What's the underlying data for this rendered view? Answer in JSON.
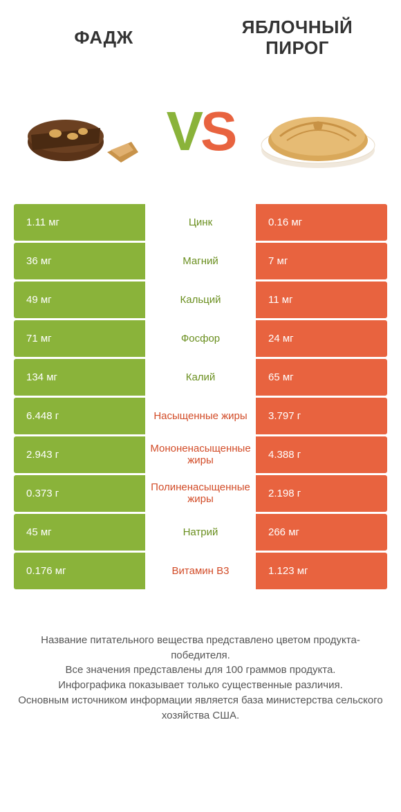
{
  "colors": {
    "green": "#8ab33a",
    "orange": "#e8633f",
    "mid_green": "#6a8f1f",
    "mid_orange": "#d24c28",
    "background": "#ffffff"
  },
  "header": {
    "left_title": "ФАДЖ",
    "right_title": "ЯБЛОЧНЫЙ ПИРОГ",
    "vs_v": "V",
    "vs_s": "S"
  },
  "rows": [
    {
      "left": "1.11 мг",
      "label": "Цинк",
      "right": "0.16 мг",
      "winner": "green"
    },
    {
      "left": "36 мг",
      "label": "Магний",
      "right": "7 мг",
      "winner": "green"
    },
    {
      "left": "49 мг",
      "label": "Кальций",
      "right": "11 мг",
      "winner": "green"
    },
    {
      "left": "71 мг",
      "label": "Фосфор",
      "right": "24 мг",
      "winner": "green"
    },
    {
      "left": "134 мг",
      "label": "Калий",
      "right": "65 мг",
      "winner": "green"
    },
    {
      "left": "6.448 г",
      "label": "Насыщенные жиры",
      "right": "3.797 г",
      "winner": "orange"
    },
    {
      "left": "2.943 г",
      "label": "Мононенасыщенные жиры",
      "right": "4.388 г",
      "winner": "orange"
    },
    {
      "left": "0.373 г",
      "label": "Полиненасыщенные жиры",
      "right": "2.198 г",
      "winner": "orange"
    },
    {
      "left": "45 мг",
      "label": "Натрий",
      "right": "266 мг",
      "winner": "green"
    },
    {
      "left": "0.176 мг",
      "label": "Витамин B3",
      "right": "1.123 мг",
      "winner": "orange"
    }
  ],
  "footer": {
    "line1": "Название питательного вещества представлено цветом продукта-победителя.",
    "line2": "Все значения представлены для 100 граммов продукта.",
    "line3": "Инфографика показывает только существенные различия.",
    "line4": "Основным источником информации является база министерства сельского хозяйства США."
  }
}
